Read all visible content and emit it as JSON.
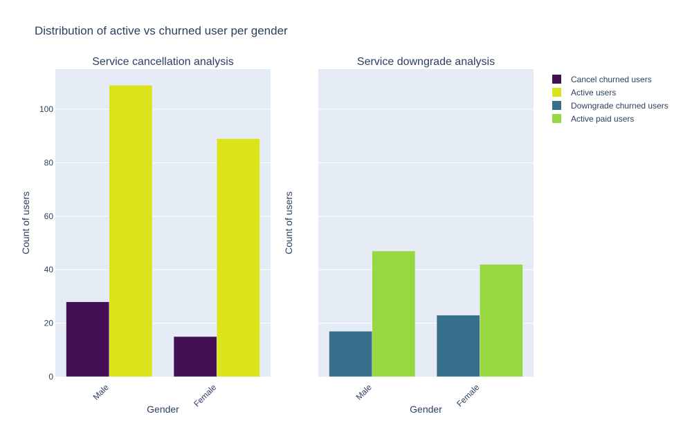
{
  "title": "Distribution of active vs churned user per gender",
  "colors": {
    "plot_bg": "#e5ecf6",
    "grid": "#ffffff",
    "text": "#2a3f5f",
    "cancel_churned": "#440f54",
    "active": "#dbe31b",
    "downgrade_churned": "#366f8b",
    "active_paid": "#97d840"
  },
  "legend": {
    "position": "right",
    "items": [
      {
        "label": "Cancel churned users",
        "color": "#440f54"
      },
      {
        "label": "Active users",
        "color": "#dbe31b"
      },
      {
        "label": "Downgrade churned users",
        "color": "#366f8b"
      },
      {
        "label": "Active paid users",
        "color": "#97d840"
      }
    ]
  },
  "chart_data": [
    {
      "type": "bar",
      "title": "Service cancellation analysis",
      "xlabel": "Gender",
      "ylabel": "Count of users",
      "categories": [
        "Male",
        "Female"
      ],
      "ylim": [
        0,
        115
      ],
      "yticks": [
        0,
        20,
        40,
        60,
        80,
        100
      ],
      "series": [
        {
          "name": "Cancel churned users",
          "color": "#440f54",
          "values": [
            28,
            15
          ]
        },
        {
          "name": "Active users",
          "color": "#dbe31b",
          "values": [
            109,
            89
          ]
        }
      ]
    },
    {
      "type": "bar",
      "title": "Service downgrade analysis",
      "xlabel": "Gender",
      "ylabel": "Count of users",
      "categories": [
        "Male",
        "Female"
      ],
      "ylim": [
        0,
        115
      ],
      "yticks": [
        0,
        20,
        40,
        60,
        80,
        100
      ],
      "series": [
        {
          "name": "Downgrade churned users",
          "color": "#366f8b",
          "values": [
            17,
            23
          ]
        },
        {
          "name": "Active paid users",
          "color": "#97d840",
          "values": [
            47,
            42
          ]
        }
      ]
    }
  ]
}
